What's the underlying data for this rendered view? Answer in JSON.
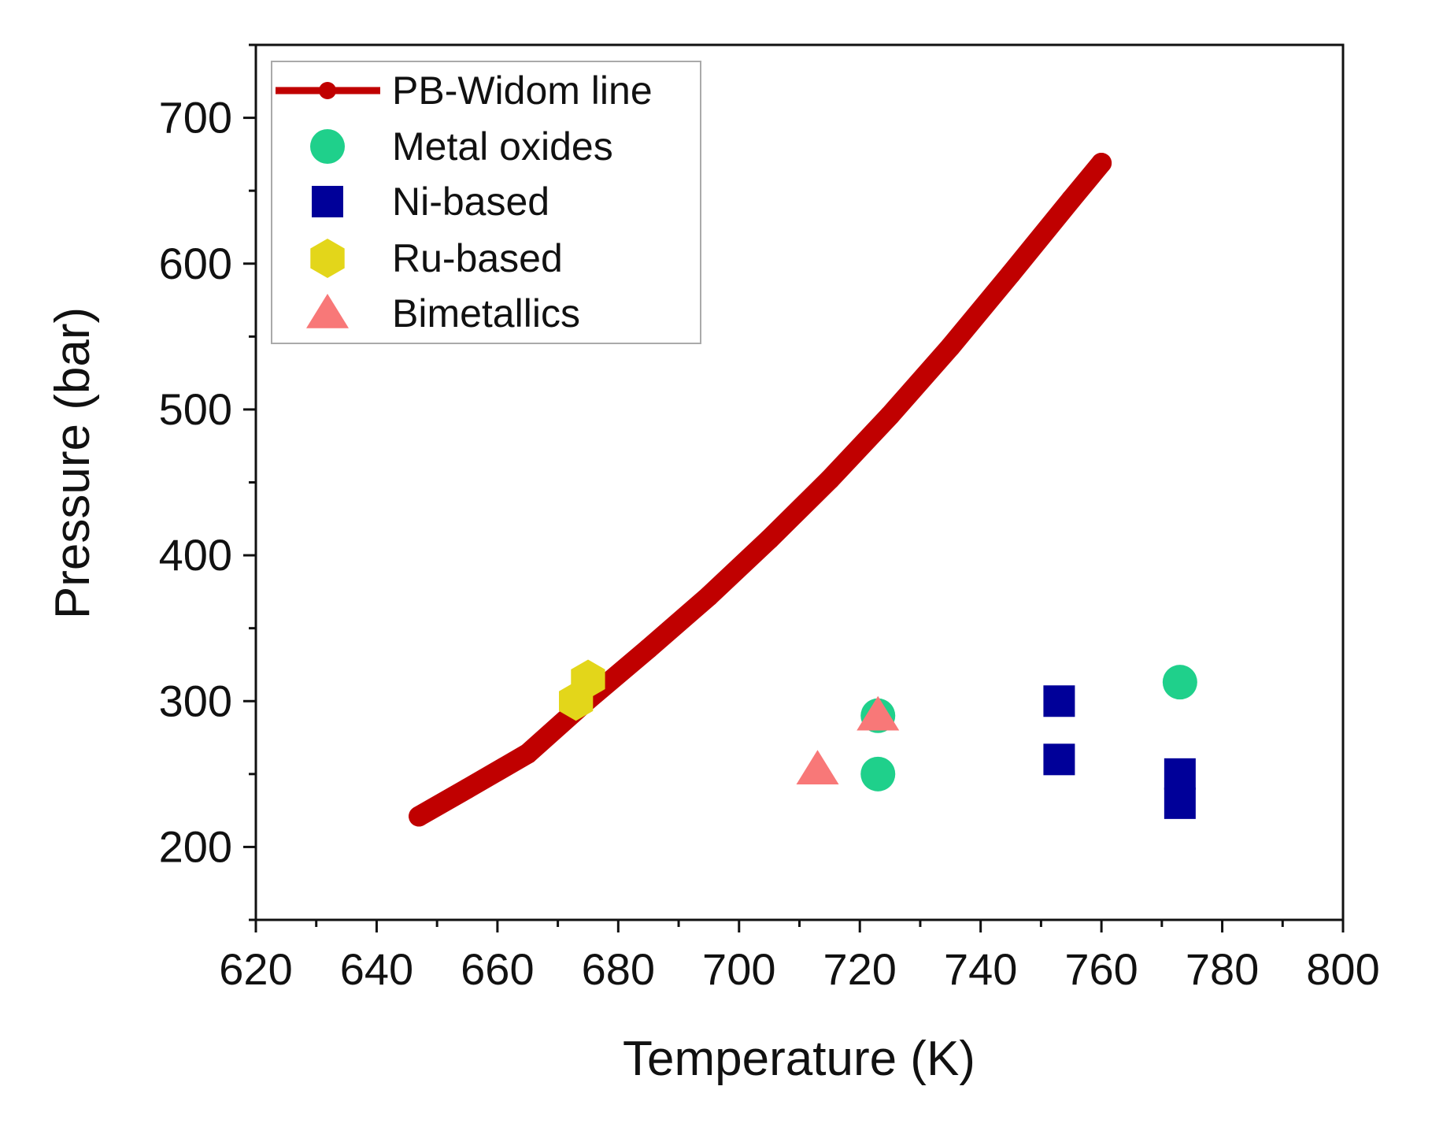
{
  "chart_data": {
    "type": "scatter",
    "title": "",
    "xlabel": "Temperature (K)",
    "ylabel": "Pressure (bar)",
    "xlim": [
      620,
      800
    ],
    "ylim": [
      150,
      750
    ],
    "xticks": [
      620,
      640,
      660,
      680,
      700,
      720,
      740,
      760,
      780,
      800
    ],
    "yticks": [
      200,
      300,
      400,
      500,
      600,
      700
    ],
    "grid": false,
    "legend_position": "top-left",
    "series": [
      {
        "name": "PB-Widom line",
        "kind": "line",
        "marker": "circle",
        "color": "#c00000",
        "points": [
          [
            647,
            221
          ],
          [
            655,
            240
          ],
          [
            665,
            264
          ],
          [
            675,
            301
          ],
          [
            685,
            336
          ],
          [
            695,
            372
          ],
          [
            705,
            411
          ],
          [
            715,
            452
          ],
          [
            725,
            496
          ],
          [
            735,
            543
          ],
          [
            745,
            593
          ],
          [
            755,
            644
          ],
          [
            760,
            669
          ]
        ]
      },
      {
        "name": "Metal oxides",
        "kind": "scatter",
        "marker": "circle",
        "color": "#1fd08b",
        "points": [
          [
            723,
            290
          ],
          [
            723,
            250
          ],
          [
            773,
            313
          ]
        ]
      },
      {
        "name": "Ni-based",
        "kind": "scatter",
        "marker": "square",
        "color": "#000099",
        "points": [
          [
            753,
            300
          ],
          [
            753,
            260
          ],
          [
            773,
            250
          ],
          [
            773,
            230
          ]
        ]
      },
      {
        "name": "Ru-based",
        "kind": "scatter",
        "marker": "hexagon",
        "color": "#e3d61a",
        "points": [
          [
            673,
            300
          ],
          [
            675,
            315
          ]
        ]
      },
      {
        "name": "Bimetallics",
        "kind": "scatter",
        "marker": "triangle",
        "color": "#f87878",
        "points": [
          [
            713,
            253
          ],
          [
            723,
            290
          ]
        ]
      }
    ]
  }
}
